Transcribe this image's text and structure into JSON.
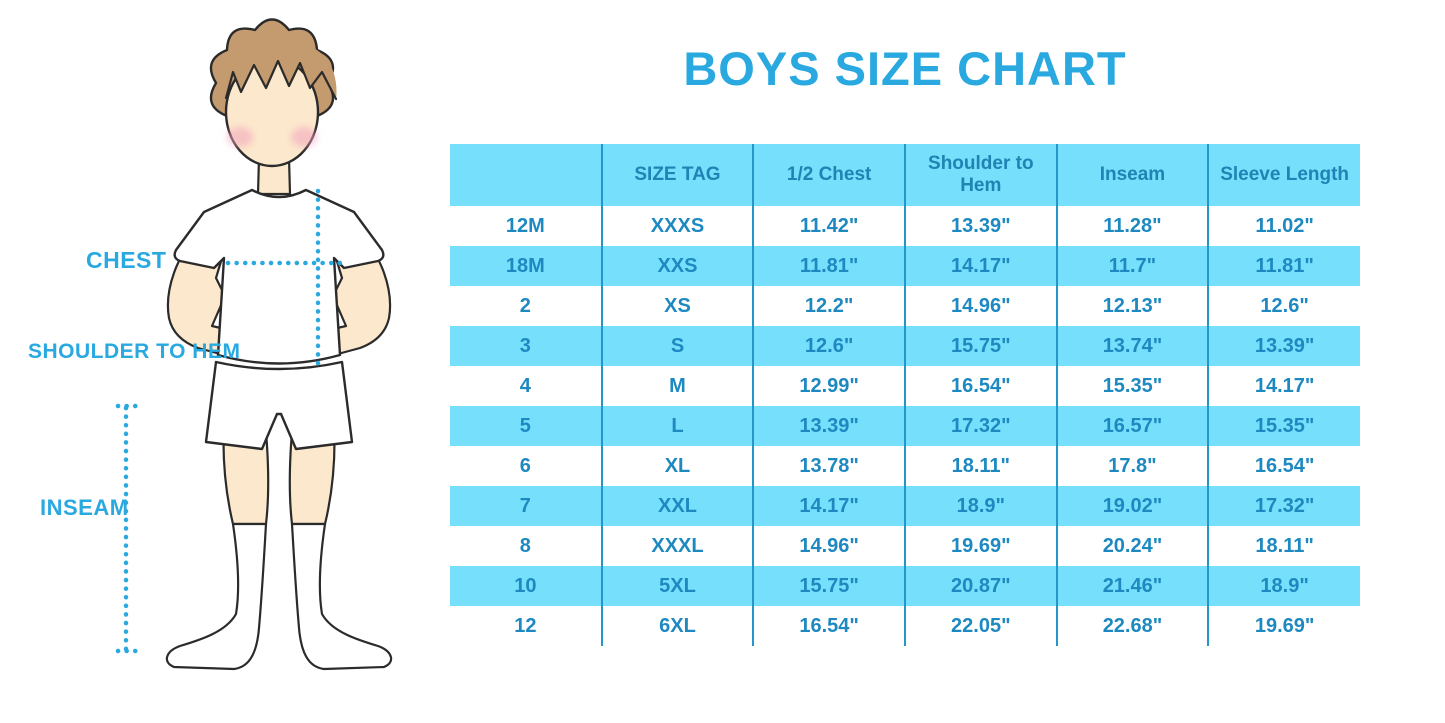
{
  "title": "BOYS SIZE CHART",
  "figure_labels": {
    "chest": "CHEST",
    "shoulder_to_hem": "SHOULDER TO HEM",
    "inseam": "INSEAM"
  },
  "colors": {
    "accent": "#29A9DF",
    "band": "#76DFFB",
    "divider": "#2497C8",
    "table_text": "#1D89C0",
    "header_text": "#1F83B4"
  },
  "illustration": {
    "description": "boy in white tee, shorts and knee socks with dotted measurement guides",
    "skin": "#FCE8CC",
    "hair": "#C49B6E",
    "cheek": "#F2A3BC",
    "outline": "#2B2B2B"
  },
  "chart_data": {
    "type": "table",
    "title": "BOYS SIZE CHART",
    "columns": [
      "",
      "SIZE TAG",
      "1/2 Chest",
      "Shoulder to Hem",
      "Inseam",
      "Sleeve Length"
    ],
    "rows": [
      [
        "12M",
        "XXXS",
        "11.42\"",
        "13.39\"",
        "11.28\"",
        "11.02\""
      ],
      [
        "18M",
        "XXS",
        "11.81\"",
        "14.17\"",
        "11.7\"",
        "11.81\""
      ],
      [
        "2",
        "XS",
        "12.2\"",
        "14.96\"",
        "12.13\"",
        "12.6\""
      ],
      [
        "3",
        "S",
        "12.6\"",
        "15.75\"",
        "13.74\"",
        "13.39\""
      ],
      [
        "4",
        "M",
        "12.99\"",
        "16.54\"",
        "15.35\"",
        "14.17\""
      ],
      [
        "5",
        "L",
        "13.39\"",
        "17.32\"",
        "16.57\"",
        "15.35\""
      ],
      [
        "6",
        "XL",
        "13.78\"",
        "18.11\"",
        "17.8\"",
        "16.54\""
      ],
      [
        "7",
        "XXL",
        "14.17\"",
        "18.9\"",
        "19.02\"",
        "17.32\""
      ],
      [
        "8",
        "XXXL",
        "14.96\"",
        "19.69\"",
        "20.24\"",
        "18.11\""
      ],
      [
        "10",
        "5XL",
        "15.75\"",
        "20.87\"",
        "21.46\"",
        "18.9\""
      ],
      [
        "12",
        "6XL",
        "16.54\"",
        "22.05\"",
        "22.68\"",
        "19.69\""
      ]
    ],
    "units": "inches",
    "layout_hints": {
      "header_background": "light blue band",
      "row_striping": "white / light blue alternating starting white",
      "grid": "vertical dividers only"
    }
  }
}
